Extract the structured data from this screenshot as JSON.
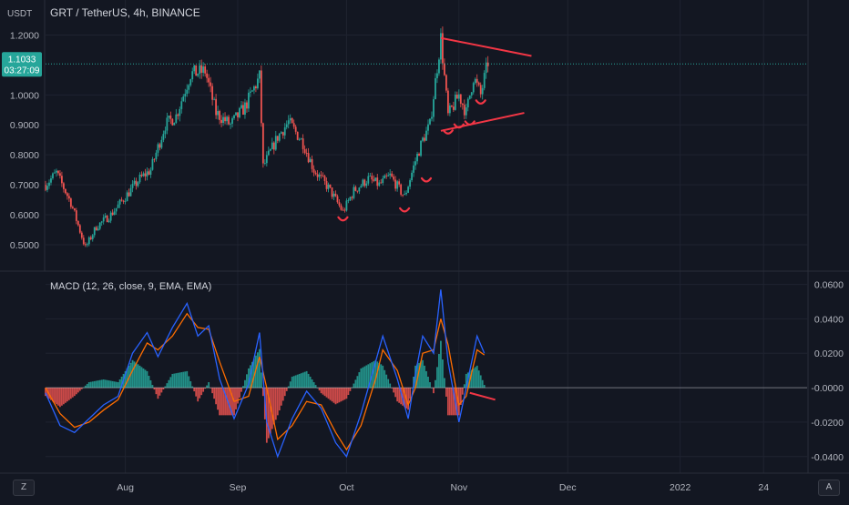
{
  "symbol_title": "GRT / TetherUS, 4h, BINANCE",
  "currency_label": "USDT",
  "last_price": "1.1033",
  "countdown": "03:27:09",
  "macd_label": "MACD (12, 26, close, 9, EMA, EMA)",
  "corner_left": "Z",
  "corner_right": "A",
  "colors": {
    "background": "#131722",
    "up": "#26a69a",
    "down": "#ef5350",
    "macd_line": "#2962ff",
    "signal_line": "#ff6d00",
    "hist_up": "#26a69a",
    "hist_down": "#ef5350",
    "trendline": "#f23645",
    "price_tag": "#26a69a"
  },
  "chart_data": [
    {
      "type": "candlestick",
      "title": "GRT / TetherUS, 4h, BINANCE",
      "price_ticks": [
        "1.2000",
        "1.0000",
        "0.9000",
        "0.8000",
        "0.7000",
        "0.6000",
        "0.5000"
      ],
      "price_tick_values": [
        1.2,
        1.0,
        0.9,
        0.8,
        0.7,
        0.6,
        0.5
      ],
      "x_ticks": [
        "Aug",
        "Sep",
        "Oct",
        "Nov",
        "Dec",
        "2022",
        "24"
      ],
      "x_tick_dates": [
        "2021-08-01",
        "2021-09-01",
        "2021-10-01",
        "2021-11-01",
        "2021-12-01",
        "2022-01-01",
        "2022-01-24"
      ],
      "ylim": [
        0.43,
        1.25
      ],
      "xlim": [
        "2021-07-10",
        "2022-02-05"
      ],
      "grid": true,
      "last_price": 1.1033,
      "trendlines": [
        {
          "from": {
            "date": "2021-10-27",
            "value": 1.19
          },
          "to": {
            "date": "2021-11-21",
            "value": 1.13
          }
        },
        {
          "from": {
            "date": "2021-10-27",
            "value": 0.88
          },
          "to": {
            "date": "2021-11-19",
            "value": 0.94
          }
        }
      ],
      "path": [
        {
          "date": "2021-07-10",
          "value": 0.7
        },
        {
          "date": "2021-07-13",
          "value": 0.74
        },
        {
          "date": "2021-07-17",
          "value": 0.64
        },
        {
          "date": "2021-07-21",
          "value": 0.49
        },
        {
          "date": "2021-07-24",
          "value": 0.56
        },
        {
          "date": "2021-07-28",
          "value": 0.6
        },
        {
          "date": "2021-08-01",
          "value": 0.66
        },
        {
          "date": "2021-08-05",
          "value": 0.72
        },
        {
          "date": "2021-08-08",
          "value": 0.75
        },
        {
          "date": "2021-08-12",
          "value": 0.9
        },
        {
          "date": "2021-08-15",
          "value": 0.93
        },
        {
          "date": "2021-08-19",
          "value": 1.07
        },
        {
          "date": "2021-08-23",
          "value": 1.08
        },
        {
          "date": "2021-08-26",
          "value": 0.94
        },
        {
          "date": "2021-08-30",
          "value": 0.9
        },
        {
          "date": "2021-09-03",
          "value": 0.96
        },
        {
          "date": "2021-09-07",
          "value": 1.06
        },
        {
          "date": "2021-09-08",
          "value": 0.76
        },
        {
          "date": "2021-09-12",
          "value": 0.86
        },
        {
          "date": "2021-09-15",
          "value": 0.91
        },
        {
          "date": "2021-09-19",
          "value": 0.84
        },
        {
          "date": "2021-09-22",
          "value": 0.75
        },
        {
          "date": "2021-09-26",
          "value": 0.69
        },
        {
          "date": "2021-09-30",
          "value": 0.61
        },
        {
          "date": "2021-10-03",
          "value": 0.68
        },
        {
          "date": "2021-10-07",
          "value": 0.72
        },
        {
          "date": "2021-10-10",
          "value": 0.7
        },
        {
          "date": "2021-10-13",
          "value": 0.73
        },
        {
          "date": "2021-10-17",
          "value": 0.66
        },
        {
          "date": "2021-10-20",
          "value": 0.78
        },
        {
          "date": "2021-10-22",
          "value": 0.85
        },
        {
          "date": "2021-10-24",
          "value": 0.9
        },
        {
          "date": "2021-10-27",
          "value": 1.19
        },
        {
          "date": "2021-10-29",
          "value": 0.93
        },
        {
          "date": "2021-11-01",
          "value": 1.0
        },
        {
          "date": "2021-11-03",
          "value": 0.94
        },
        {
          "date": "2021-11-05",
          "value": 1.06
        },
        {
          "date": "2021-11-07",
          "value": 1.0
        },
        {
          "date": "2021-11-09",
          "value": 1.11
        }
      ],
      "annotation_points": [
        {
          "date": "2021-09-30",
          "value": 0.61
        },
        {
          "date": "2021-10-17",
          "value": 0.64
        },
        {
          "date": "2021-10-23",
          "value": 0.74
        },
        {
          "date": "2021-10-29",
          "value": 0.9
        },
        {
          "date": "2021-11-01",
          "value": 0.92
        },
        {
          "date": "2021-11-04",
          "value": 0.93
        },
        {
          "date": "2021-11-07",
          "value": 1.0
        }
      ]
    },
    {
      "type": "macd",
      "title": "MACD (12, 26, close, 9, EMA, EMA)",
      "y_ticks": [
        "0.0600",
        "0.0400",
        "0.0200",
        "-0.0000",
        "-0.0200",
        "-0.0400"
      ],
      "y_tick_values": [
        0.06,
        0.04,
        0.02,
        0.0,
        -0.02,
        -0.04
      ],
      "ylim": [
        -0.047,
        0.064
      ],
      "trendline": {
        "from": {
          "date": "2021-11-04",
          "value": -0.003
        },
        "to": {
          "date": "2021-11-11",
          "value": -0.007
        }
      },
      "macd_path": [
        {
          "date": "2021-07-10",
          "value": -0.003
        },
        {
          "date": "2021-07-14",
          "value": -0.022
        },
        {
          "date": "2021-07-18",
          "value": -0.026
        },
        {
          "date": "2021-07-22",
          "value": -0.018
        },
        {
          "date": "2021-07-26",
          "value": -0.01
        },
        {
          "date": "2021-07-30",
          "value": -0.005
        },
        {
          "date": "2021-08-03",
          "value": 0.02
        },
        {
          "date": "2021-08-07",
          "value": 0.032
        },
        {
          "date": "2021-08-10",
          "value": 0.018
        },
        {
          "date": "2021-08-14",
          "value": 0.035
        },
        {
          "date": "2021-08-18",
          "value": 0.049
        },
        {
          "date": "2021-08-21",
          "value": 0.03
        },
        {
          "date": "2021-08-24",
          "value": 0.036
        },
        {
          "date": "2021-08-27",
          "value": 0.005
        },
        {
          "date": "2021-08-31",
          "value": -0.018
        },
        {
          "date": "2021-09-04",
          "value": 0.002
        },
        {
          "date": "2021-09-07",
          "value": 0.032
        },
        {
          "date": "2021-09-09",
          "value": -0.02
        },
        {
          "date": "2021-09-12",
          "value": -0.04
        },
        {
          "date": "2021-09-16",
          "value": -0.018
        },
        {
          "date": "2021-09-20",
          "value": -0.002
        },
        {
          "date": "2021-09-24",
          "value": -0.012
        },
        {
          "date": "2021-09-28",
          "value": -0.032
        },
        {
          "date": "2021-10-01",
          "value": -0.04
        },
        {
          "date": "2021-10-05",
          "value": -0.015
        },
        {
          "date": "2021-10-09",
          "value": 0.015
        },
        {
          "date": "2021-10-11",
          "value": 0.03
        },
        {
          "date": "2021-10-15",
          "value": 0.005
        },
        {
          "date": "2021-10-18",
          "value": -0.018
        },
        {
          "date": "2021-10-20",
          "value": 0.008
        },
        {
          "date": "2021-10-22",
          "value": 0.03
        },
        {
          "date": "2021-10-25",
          "value": 0.02
        },
        {
          "date": "2021-10-27",
          "value": 0.057
        },
        {
          "date": "2021-10-29",
          "value": 0.015
        },
        {
          "date": "2021-11-01",
          "value": -0.02
        },
        {
          "date": "2021-11-03",
          "value": 0.0
        },
        {
          "date": "2021-11-06",
          "value": 0.03
        },
        {
          "date": "2021-11-08",
          "value": 0.02
        }
      ],
      "signal_path": [
        {
          "date": "2021-07-10",
          "value": 0.0
        },
        {
          "date": "2021-07-14",
          "value": -0.015
        },
        {
          "date": "2021-07-18",
          "value": -0.023
        },
        {
          "date": "2021-07-22",
          "value": -0.02
        },
        {
          "date": "2021-07-26",
          "value": -0.013
        },
        {
          "date": "2021-07-30",
          "value": -0.007
        },
        {
          "date": "2021-08-03",
          "value": 0.01
        },
        {
          "date": "2021-08-07",
          "value": 0.026
        },
        {
          "date": "2021-08-10",
          "value": 0.022
        },
        {
          "date": "2021-08-14",
          "value": 0.03
        },
        {
          "date": "2021-08-18",
          "value": 0.043
        },
        {
          "date": "2021-08-21",
          "value": 0.035
        },
        {
          "date": "2021-08-24",
          "value": 0.034
        },
        {
          "date": "2021-08-27",
          "value": 0.015
        },
        {
          "date": "2021-08-31",
          "value": -0.008
        },
        {
          "date": "2021-09-04",
          "value": -0.005
        },
        {
          "date": "2021-09-07",
          "value": 0.018
        },
        {
          "date": "2021-09-09",
          "value": 0.0
        },
        {
          "date": "2021-09-12",
          "value": -0.03
        },
        {
          "date": "2021-09-16",
          "value": -0.022
        },
        {
          "date": "2021-09-20",
          "value": -0.008
        },
        {
          "date": "2021-09-24",
          "value": -0.01
        },
        {
          "date": "2021-09-28",
          "value": -0.026
        },
        {
          "date": "2021-10-01",
          "value": -0.036
        },
        {
          "date": "2021-10-05",
          "value": -0.022
        },
        {
          "date": "2021-10-09",
          "value": 0.005
        },
        {
          "date": "2021-10-11",
          "value": 0.022
        },
        {
          "date": "2021-10-15",
          "value": 0.01
        },
        {
          "date": "2021-10-18",
          "value": -0.01
        },
        {
          "date": "2021-10-20",
          "value": 0.0
        },
        {
          "date": "2021-10-22",
          "value": 0.02
        },
        {
          "date": "2021-10-25",
          "value": 0.022
        },
        {
          "date": "2021-10-27",
          "value": 0.04
        },
        {
          "date": "2021-10-29",
          "value": 0.025
        },
        {
          "date": "2021-11-01",
          "value": -0.01
        },
        {
          "date": "2021-11-03",
          "value": -0.005
        },
        {
          "date": "2021-11-06",
          "value": 0.022
        },
        {
          "date": "2021-11-08",
          "value": 0.019
        }
      ]
    }
  ]
}
